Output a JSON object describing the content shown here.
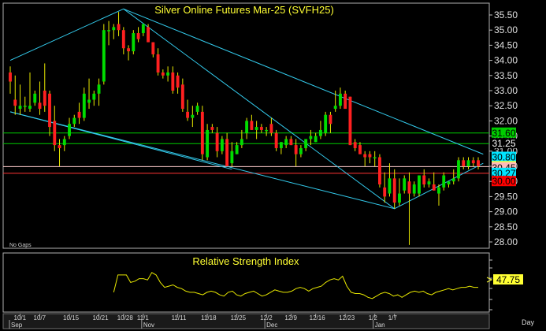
{
  "chart_data": [
    {
      "type": "candlestick",
      "title": "Silver Online Futures Mar-25 (SVFH25)",
      "note": "No Gaps",
      "ylim": [
        27.85,
        35.7
      ],
      "y_ticks": [
        "35.50",
        "35.00",
        "34.50",
        "34.00",
        "33.50",
        "33.00",
        "32.50",
        "32.00",
        "31.50",
        "31.00",
        "30.50",
        "30.00",
        "29.50",
        "29.00",
        "28.50",
        "28.00"
      ],
      "horizontal_levels": [
        {
          "value": 31.6,
          "label": "31.60",
          "line_color": "#00cc00",
          "label_bg": "#00cc00",
          "label_color": "#000000"
        },
        {
          "value": 31.25,
          "label": "31.25",
          "line_color": "#00cc00",
          "label_bg": "#000000",
          "label_color": "#ffffff"
        },
        {
          "value": 30.8,
          "label": "30.80",
          "line_color": null,
          "label_bg": "#00e5ff",
          "label_color": "#000000"
        },
        {
          "value": 30.49,
          "label": "30.49",
          "line_color": "#ffcccc",
          "label_bg": "#ffff33",
          "label_color": "#000000"
        },
        {
          "value": 30.45,
          "label": "30.45",
          "line_color": null,
          "label_bg": "#ffbbbb",
          "label_color": "#000000"
        },
        {
          "value": 30.27,
          "label": "30.27",
          "line_color": "#ff3333",
          "label_bg": "#00e5ff",
          "label_color": "#000000"
        },
        {
          "value": 30.0,
          "label": "30.00",
          "line_color": null,
          "label_bg": "#ff0000",
          "label_color": "#000000"
        }
      ],
      "trendlines": [
        {
          "color": "#33ccee",
          "points": [
            [
              0,
              34.0
            ],
            [
              23,
              35.7
            ],
            [
              78,
              29.1
            ],
            [
              96,
              30.6
            ]
          ]
        },
        {
          "color": "#33ccee",
          "points": [
            [
              0,
              32.3
            ],
            [
              45,
              30.4
            ]
          ]
        },
        {
          "color": "#33ccee",
          "points": [
            [
              0,
              32.3
            ],
            [
              78,
              29.1
            ]
          ]
        },
        {
          "color": "#33ccee",
          "points": [
            [
              23,
              35.7
            ],
            [
              96,
              30.9
            ]
          ]
        }
      ],
      "candles": [
        {
          "o": 33.6,
          "h": 33.8,
          "l": 32.9,
          "c": 33.3
        },
        {
          "o": 32.7,
          "h": 33.5,
          "l": 32.2,
          "c": 32.5
        },
        {
          "o": 32.4,
          "h": 33.2,
          "l": 32.2,
          "c": 32.5
        },
        {
          "o": 32.5,
          "h": 32.8,
          "l": 32.3,
          "c": 32.5
        },
        {
          "o": 32.4,
          "h": 33.6,
          "l": 32.3,
          "c": 32.5
        },
        {
          "o": 32.6,
          "h": 33.0,
          "l": 32.5,
          "c": 32.9
        },
        {
          "o": 32.6,
          "h": 33.3,
          "l": 32.2,
          "c": 32.4
        },
        {
          "o": 33.0,
          "h": 33.9,
          "l": 32.3,
          "c": 32.5
        },
        {
          "o": 32.9,
          "h": 33.0,
          "l": 31.5,
          "c": 31.8
        },
        {
          "o": 32.0,
          "h": 32.5,
          "l": 31.0,
          "c": 31.2
        },
        {
          "o": 31.2,
          "h": 31.4,
          "l": 30.5,
          "c": 31.1
        },
        {
          "o": 31.2,
          "h": 31.5,
          "l": 31.0,
          "c": 31.4
        },
        {
          "o": 31.5,
          "h": 32.1,
          "l": 31.4,
          "c": 31.9
        },
        {
          "o": 31.9,
          "h": 32.2,
          "l": 31.8,
          "c": 32.1
        },
        {
          "o": 32.3,
          "h": 32.6,
          "l": 31.9,
          "c": 32.1
        },
        {
          "o": 32.1,
          "h": 33.1,
          "l": 32.0,
          "c": 32.9
        },
        {
          "o": 32.6,
          "h": 33.4,
          "l": 32.4,
          "c": 32.7
        },
        {
          "o": 32.7,
          "h": 33.0,
          "l": 32.5,
          "c": 32.9
        },
        {
          "o": 32.9,
          "h": 33.4,
          "l": 32.5,
          "c": 33.2
        },
        {
          "o": 33.3,
          "h": 35.2,
          "l": 33.2,
          "c": 35.0
        },
        {
          "o": 35.0,
          "h": 35.3,
          "l": 34.5,
          "c": 35.0
        },
        {
          "o": 35.0,
          "h": 35.2,
          "l": 34.7,
          "c": 35.1
        },
        {
          "o": 35.2,
          "h": 35.6,
          "l": 34.8,
          "c": 35.0
        },
        {
          "o": 35.0,
          "h": 35.1,
          "l": 34.2,
          "c": 34.4
        },
        {
          "o": 34.4,
          "h": 34.5,
          "l": 34.0,
          "c": 34.3
        },
        {
          "o": 34.3,
          "h": 35.0,
          "l": 34.2,
          "c": 34.9
        },
        {
          "o": 34.9,
          "h": 35.1,
          "l": 34.6,
          "c": 34.7
        },
        {
          "o": 34.9,
          "h": 35.2,
          "l": 34.8,
          "c": 35.2
        },
        {
          "o": 35.1,
          "h": 35.2,
          "l": 34.6,
          "c": 34.6
        },
        {
          "o": 34.6,
          "h": 34.6,
          "l": 34.1,
          "c": 34.2
        },
        {
          "o": 34.2,
          "h": 34.4,
          "l": 33.5,
          "c": 33.6
        },
        {
          "o": 33.6,
          "h": 33.7,
          "l": 33.4,
          "c": 33.5
        },
        {
          "o": 33.5,
          "h": 33.8,
          "l": 33.3,
          "c": 33.6
        },
        {
          "o": 33.6,
          "h": 33.8,
          "l": 32.9,
          "c": 33.0
        },
        {
          "o": 33.5,
          "h": 33.6,
          "l": 32.9,
          "c": 33.1
        },
        {
          "o": 33.2,
          "h": 33.4,
          "l": 32.3,
          "c": 32.4
        },
        {
          "o": 32.3,
          "h": 32.7,
          "l": 32.0,
          "c": 32.1
        },
        {
          "o": 32.1,
          "h": 32.5,
          "l": 31.8,
          "c": 32.2
        },
        {
          "o": 32.3,
          "h": 32.6,
          "l": 32.2,
          "c": 32.5
        },
        {
          "o": 32.3,
          "h": 32.5,
          "l": 30.7,
          "c": 30.9
        },
        {
          "o": 30.8,
          "h": 31.9,
          "l": 30.7,
          "c": 31.7
        },
        {
          "o": 31.8,
          "h": 31.9,
          "l": 31.6,
          "c": 31.7
        },
        {
          "o": 31.6,
          "h": 31.8,
          "l": 30.8,
          "c": 31.0
        },
        {
          "o": 31.0,
          "h": 31.5,
          "l": 30.9,
          "c": 31.4
        },
        {
          "o": 31.4,
          "h": 31.6,
          "l": 30.5,
          "c": 30.5
        },
        {
          "o": 30.6,
          "h": 31.3,
          "l": 30.5,
          "c": 31.0
        },
        {
          "o": 30.9,
          "h": 31.3,
          "l": 30.9,
          "c": 31.2
        },
        {
          "o": 31.2,
          "h": 31.7,
          "l": 31.1,
          "c": 31.4
        },
        {
          "o": 31.6,
          "h": 32.1,
          "l": 31.4,
          "c": 32.0
        },
        {
          "o": 32.0,
          "h": 32.2,
          "l": 31.7,
          "c": 31.7
        },
        {
          "o": 31.7,
          "h": 32.0,
          "l": 31.4,
          "c": 31.8
        },
        {
          "o": 31.8,
          "h": 31.9,
          "l": 31.6,
          "c": 31.7
        },
        {
          "o": 31.7,
          "h": 31.8,
          "l": 31.5,
          "c": 31.7
        },
        {
          "o": 31.9,
          "h": 32.1,
          "l": 31.5,
          "c": 31.6
        },
        {
          "o": 31.6,
          "h": 31.7,
          "l": 31.0,
          "c": 31.1
        },
        {
          "o": 31.1,
          "h": 31.3,
          "l": 30.9,
          "c": 31.3
        },
        {
          "o": 31.2,
          "h": 31.5,
          "l": 31.1,
          "c": 31.4
        },
        {
          "o": 31.4,
          "h": 31.5,
          "l": 31.2,
          "c": 31.2
        },
        {
          "o": 31.2,
          "h": 31.4,
          "l": 30.5,
          "c": 30.9
        },
        {
          "o": 30.9,
          "h": 31.2,
          "l": 30.8,
          "c": 31.1
        },
        {
          "o": 31.1,
          "h": 31.4,
          "l": 31.0,
          "c": 31.4
        },
        {
          "o": 31.4,
          "h": 31.7,
          "l": 31.2,
          "c": 31.5
        },
        {
          "o": 31.3,
          "h": 31.6,
          "l": 31.3,
          "c": 31.5
        },
        {
          "o": 31.5,
          "h": 32.0,
          "l": 31.4,
          "c": 31.7
        },
        {
          "o": 31.6,
          "h": 32.3,
          "l": 31.5,
          "c": 32.2
        },
        {
          "o": 32.2,
          "h": 32.3,
          "l": 31.6,
          "c": 31.9
        },
        {
          "o": 32.4,
          "h": 33.0,
          "l": 32.3,
          "c": 32.5
        },
        {
          "o": 32.5,
          "h": 33.1,
          "l": 32.4,
          "c": 32.9
        },
        {
          "o": 32.9,
          "h": 33.0,
          "l": 32.4,
          "c": 32.4
        },
        {
          "o": 32.8,
          "h": 32.8,
          "l": 31.2,
          "c": 31.2
        },
        {
          "o": 31.3,
          "h": 31.4,
          "l": 31.0,
          "c": 31.1
        },
        {
          "o": 31.2,
          "h": 31.3,
          "l": 30.9,
          "c": 30.9
        },
        {
          "o": 30.9,
          "h": 31.0,
          "l": 30.5,
          "c": 30.8
        },
        {
          "o": 30.9,
          "h": 31.0,
          "l": 30.6,
          "c": 30.8
        },
        {
          "o": 30.8,
          "h": 31.0,
          "l": 30.5,
          "c": 30.8
        },
        {
          "o": 30.8,
          "h": 30.9,
          "l": 29.8,
          "c": 29.9
        },
        {
          "o": 29.8,
          "h": 30.3,
          "l": 29.3,
          "c": 29.5
        },
        {
          "o": 29.6,
          "h": 30.6,
          "l": 29.5,
          "c": 30.1
        },
        {
          "o": 30.1,
          "h": 30.4,
          "l": 29.1,
          "c": 29.3
        },
        {
          "o": 29.3,
          "h": 30.1,
          "l": 29.2,
          "c": 29.6
        },
        {
          "o": 29.7,
          "h": 30.2,
          "l": 29.6,
          "c": 30.1
        },
        {
          "o": 30.0,
          "h": 30.3,
          "l": 27.9,
          "c": 29.6
        },
        {
          "o": 29.6,
          "h": 30.0,
          "l": 29.5,
          "c": 29.9
        },
        {
          "o": 29.6,
          "h": 30.2,
          "l": 29.5,
          "c": 30.2
        },
        {
          "o": 30.2,
          "h": 30.4,
          "l": 29.8,
          "c": 29.9
        },
        {
          "o": 29.9,
          "h": 30.1,
          "l": 29.8,
          "c": 30.0
        },
        {
          "o": 29.9,
          "h": 30.3,
          "l": 29.7,
          "c": 29.7
        },
        {
          "o": 29.6,
          "h": 29.9,
          "l": 29.2,
          "c": 29.8
        },
        {
          "o": 29.8,
          "h": 30.3,
          "l": 29.7,
          "c": 30.2
        },
        {
          "o": 29.9,
          "h": 30.0,
          "l": 29.8,
          "c": 30.0
        },
        {
          "o": 30.0,
          "h": 30.4,
          "l": 29.9,
          "c": 30.1
        },
        {
          "o": 30.1,
          "h": 30.8,
          "l": 30.0,
          "c": 30.7
        },
        {
          "o": 30.7,
          "h": 30.8,
          "l": 30.4,
          "c": 30.5
        },
        {
          "o": 30.5,
          "h": 30.8,
          "l": 30.4,
          "c": 30.7
        },
        {
          "o": 30.7,
          "h": 30.8,
          "l": 30.5,
          "c": 30.6
        },
        {
          "o": 30.7,
          "h": 30.8,
          "l": 30.4,
          "c": 30.5
        }
      ],
      "candle_colors": {
        "up": "#00dd00",
        "down": "#ff2020"
      }
    },
    {
      "type": "line",
      "title": "Relative Strength Index",
      "last_value": "47.75",
      "line_color": "#e8e800",
      "series_start_index": 21,
      "values": [
        44,
        58,
        58,
        58,
        52,
        53,
        55,
        55,
        54,
        60,
        58,
        52,
        48,
        49,
        50,
        48,
        47,
        45,
        44,
        44,
        43,
        42,
        44,
        45,
        44,
        42,
        41,
        44,
        45,
        42,
        41,
        43,
        44,
        45,
        43,
        41,
        42,
        44,
        46,
        45,
        44,
        44,
        45,
        47,
        48,
        47,
        45,
        47,
        48,
        49,
        52,
        54,
        55,
        54,
        57,
        49,
        44,
        43,
        43,
        42,
        40,
        39,
        41,
        43,
        44,
        43,
        41,
        42,
        40,
        42,
        44,
        45,
        44,
        45,
        43,
        42,
        44,
        45,
        46,
        47,
        46,
        47,
        48,
        48,
        49,
        48,
        48
      ]
    }
  ],
  "x_axis": {
    "ticks": [
      {
        "label": "10/1",
        "index": 2
      },
      {
        "label": "10/7",
        "index": 6
      },
      {
        "label": "10/15",
        "index": 12
      },
      {
        "label": "10/21",
        "index": 18
      },
      {
        "label": "10/28",
        "index": 23
      },
      {
        "label": "11/1",
        "index": 27
      },
      {
        "label": "11/11",
        "index": 34
      },
      {
        "label": "11/18",
        "index": 40
      },
      {
        "label": "11/25",
        "index": 46
      },
      {
        "label": "12/2",
        "index": 52
      },
      {
        "label": "12/9",
        "index": 57
      },
      {
        "label": "12/16",
        "index": 62
      },
      {
        "label": "12/23",
        "index": 68
      },
      {
        "label": "1/2",
        "index": 74
      },
      {
        "label": "1/7",
        "index": 78
      }
    ],
    "months": [
      {
        "label": "Sep",
        "index": 0
      },
      {
        "label": "Nov",
        "index": 27
      },
      {
        "label": "Dec",
        "index": 52
      },
      {
        "label": "Jan",
        "index": 74
      }
    ],
    "period_label": "Day"
  }
}
